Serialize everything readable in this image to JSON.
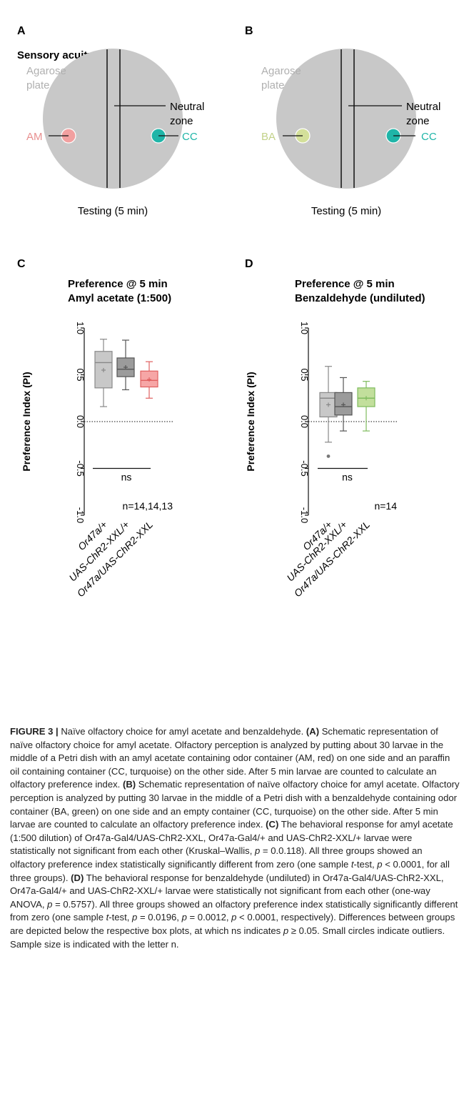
{
  "panels": {
    "A": {
      "letter": "A",
      "section_title": "Sensory acuity",
      "plate_label_line1": "Agarose",
      "plate_label_line2": "plate",
      "neutral_line1": "Neutral",
      "neutral_line2": "zone",
      "odor_label": "AM",
      "control_label": "CC",
      "testing_label": "Testing (5 min)"
    },
    "B": {
      "letter": "B",
      "plate_label_line1": "Agarose",
      "plate_label_line2": "plate",
      "neutral_line1": "Neutral",
      "neutral_line2": "zone",
      "odor_label": "BA",
      "control_label": "CC",
      "testing_label": "Testing (5 min)"
    },
    "C": {
      "letter": "C"
    },
    "D": {
      "letter": "D"
    }
  },
  "colors": {
    "plate": "#c8c8c8",
    "am": "#f2a0a0",
    "ba": "#d4e09a",
    "cc": "#1fb5a8",
    "label_grey": "#b0b0b0",
    "am_text": "#e89090",
    "ba_text": "#c3d28a",
    "cc_text": "#1fb5a8"
  },
  "chart_data": [
    {
      "type": "box",
      "title_line1": "Preference @ 5 min",
      "title_line2": "Amyl acetate (1:500)",
      "ylabel": "Preference Index (PI)",
      "ylim": [
        -1.0,
        1.0
      ],
      "yticks": [
        "1.0",
        "0.5",
        "0.0",
        "-0.5",
        "-1.0"
      ],
      "categories": [
        "Or47a/+",
        "UAS-ChR2-XXL/+",
        "Or47a/UAS-ChR2-XXL"
      ],
      "boxes": [
        {
          "min": 0.16,
          "q1": 0.36,
          "median": 0.63,
          "q3": 0.75,
          "max": 0.88,
          "mean": 0.55,
          "fill": "#c8c8c8",
          "stroke": "#888888",
          "outliers": []
        },
        {
          "min": 0.34,
          "q1": 0.48,
          "median": 0.56,
          "q3": 0.68,
          "max": 0.87,
          "mean": 0.58,
          "fill": "#9b9b9b",
          "stroke": "#555555",
          "outliers": []
        },
        {
          "min": 0.25,
          "q1": 0.37,
          "median": 0.44,
          "q3": 0.54,
          "max": 0.64,
          "mean": 0.45,
          "fill": "#f6a6a6",
          "stroke": "#e06060",
          "outliers": []
        }
      ],
      "significance": "ns",
      "n_label": "n=14,14,13"
    },
    {
      "type": "box",
      "title_line1": "Preference @ 5 min",
      "title_line2": "Benzaldehyde (undiluted)",
      "ylabel": "Preference Index (PI)",
      "ylim": [
        -1.0,
        1.0
      ],
      "yticks": [
        "1.0",
        "0.5",
        "0.0",
        "-0.5",
        "-1.0"
      ],
      "categories": [
        "Or47a/+",
        "UAS-ChR2-XXL/+",
        "Or47a/UAS-ChR2-XXL"
      ],
      "boxes": [
        {
          "min": -0.22,
          "q1": 0.05,
          "median": 0.25,
          "q3": 0.31,
          "max": 0.59,
          "mean": 0.18,
          "fill": "#c8c8c8",
          "stroke": "#888888",
          "outliers": [
            -0.37
          ]
        },
        {
          "min": -0.1,
          "q1": 0.07,
          "median": 0.16,
          "q3": 0.31,
          "max": 0.47,
          "mean": 0.18,
          "fill": "#9b9b9b",
          "stroke": "#555555",
          "outliers": []
        },
        {
          "min": -0.1,
          "q1": 0.16,
          "median": 0.25,
          "q3": 0.36,
          "max": 0.43,
          "mean": 0.25,
          "fill": "#c2df9c",
          "stroke": "#7fbb5e",
          "outliers": []
        }
      ],
      "significance": "ns",
      "n_label": "n=14"
    }
  ],
  "caption": {
    "lead": "FIGURE 3 |",
    "title": " Naïve olfactory choice for amyl acetate and benzaldehyde.",
    "a_ref": "(A)",
    "a_text": " Schematic representation of naïve olfactory choice for amyl acetate. Olfactory perception is analyzed by putting about 30 larvae in the middle of a Petri dish with an amyl acetate containing odor container (AM, red) on one side and an paraffin oil containing container (CC, turquoise) on the other side. After 5 min larvae are counted to calculate an olfactory preference index.",
    "b_ref": "(B)",
    "b_text": " Schematic representation of naïve olfactory choice for amyl acetate. Olfactory perception is analyzed by putting 30 larvae in the middle of a Petri dish with a benzaldehyde containing odor container (BA, green) on one side and an empty container (CC, turquoise) on the other side. After 5 min larvae are counted to calculate an olfactory preference index.",
    "c_ref": "(C)",
    "c_text1": " The behavioral response for amyl acetate (1:500 dilution) of Or47a-Gal4/UAS-ChR2-XXL, Or47a-Gal4/+ and UAS-ChR2-XXL/+ larvae were statistically not significant from each other (Kruskal–Wallis, ",
    "c_p1": "p",
    "c_text2": " = 0.0.118). All three groups showed an olfactory preference index statistically significantly different from zero (one sample ",
    "c_t": "t",
    "c_text3": "-test, ",
    "c_p2": "p",
    "c_text4": " < 0.0001, for all three groups).",
    "d_ref": "(D)",
    "d_text1": " The behavioral response for benzaldehyde (undiluted) in Or47a-Gal4/UAS-ChR2-XXL, Or47a-Gal4/+ and UAS-ChR2-XXL/+ larvae were statistically not significant from each other (one-way ANOVA, ",
    "d_p1": "p",
    "d_text2": " = 0.5757). All three groups showed an olfactory preference index statistically significantly different from zero (one sample ",
    "d_t": "t",
    "d_text3": "-test, ",
    "d_p2": "p",
    "d_text4": " = 0.0196, ",
    "d_p3": "p",
    "d_text5": " = 0.0012, ",
    "d_p4": "p",
    "d_text6": " < 0.0001, respectively). Differences between groups are depicted below the respective box plots, at which ns indicates ",
    "d_p5": "p",
    "d_text7": " ≥ 0.05. Small circles indicate outliers. Sample size is indicated with the letter n."
  }
}
